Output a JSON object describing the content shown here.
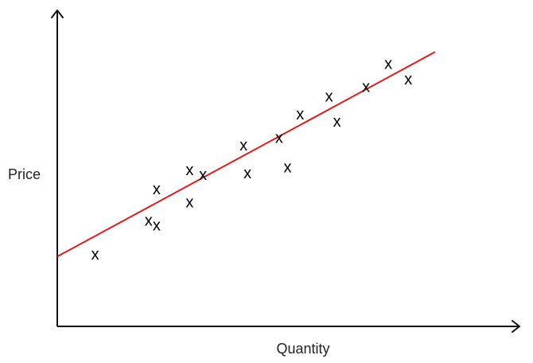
{
  "chart_data": {
    "type": "scatter",
    "title": "",
    "xlabel": "Quantity",
    "ylabel": "Price",
    "marker": "x",
    "grid": false,
    "ticks": false,
    "xlim": [
      0,
      100
    ],
    "ylim": [
      0,
      100
    ],
    "points": [
      {
        "x": 8.5,
        "y": 26.6
      },
      {
        "x": 20.5,
        "y": 39.2
      },
      {
        "x": 22.3,
        "y": 37.5
      },
      {
        "x": 22.3,
        "y": 51.0
      },
      {
        "x": 29.7,
        "y": 46.1
      },
      {
        "x": 29.7,
        "y": 58.1
      },
      {
        "x": 32.7,
        "y": 56.3
      },
      {
        "x": 41.8,
        "y": 67.3
      },
      {
        "x": 42.7,
        "y": 57.0
      },
      {
        "x": 49.8,
        "y": 70.2
      },
      {
        "x": 51.7,
        "y": 59.2
      },
      {
        "x": 54.5,
        "y": 79.0
      },
      {
        "x": 61.0,
        "y": 85.7
      },
      {
        "x": 62.8,
        "y": 76.2
      },
      {
        "x": 69.3,
        "y": 89.2
      },
      {
        "x": 74.3,
        "y": 97.8
      },
      {
        "x": 78.8,
        "y": 92.0
      }
    ],
    "fit_line": {
      "color": "#e11b1b",
      "x": [
        0,
        84.8
      ],
      "y": [
        26.1,
        102.6
      ]
    },
    "colors": {
      "axis": "#111111",
      "points": "#000000",
      "fit": "#e11b1b"
    }
  }
}
